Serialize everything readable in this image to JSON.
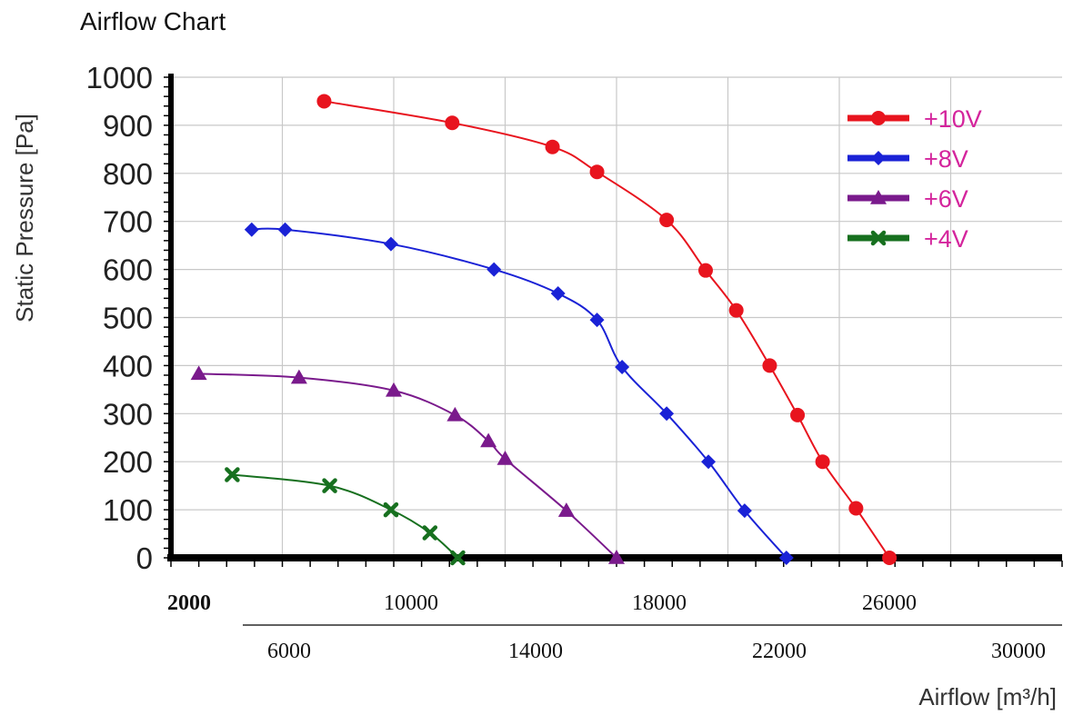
{
  "chart_data": {
    "type": "line",
    "title": "Airflow Chart",
    "xlabel": "Airflow [m³/h]",
    "ylabel": "Static Pressure [Pa]",
    "xlim": [
      0,
      32000
    ],
    "ylim": [
      0,
      1000
    ],
    "yticks": [
      "1000",
      "900",
      "800",
      "700",
      "600",
      "500",
      "400",
      "300",
      "200",
      "100",
      "0"
    ],
    "xticks_upper": [
      "2000",
      "10000",
      "18000",
      "26000"
    ],
    "xticks_lower": [
      "6000",
      "14000",
      "22000",
      "30000"
    ],
    "grid": true,
    "legend_position": "top-right",
    "series": [
      {
        "name": "+10V",
        "color": "#e8141e",
        "marker": "circle",
        "points": [
          [
            5500,
            950
          ],
          [
            10100,
            905
          ],
          [
            13700,
            855
          ],
          [
            15300,
            803
          ],
          [
            17800,
            703
          ],
          [
            19200,
            598
          ],
          [
            20300,
            515
          ],
          [
            21500,
            400
          ],
          [
            22500,
            297
          ],
          [
            23400,
            200
          ],
          [
            24600,
            103
          ],
          [
            25800,
            0
          ]
        ]
      },
      {
        "name": "+8V",
        "color": "#1a22d6",
        "marker": "diamond",
        "points": [
          [
            2900,
            683
          ],
          [
            4100,
            683
          ],
          [
            7900,
            653
          ],
          [
            11600,
            600
          ],
          [
            13900,
            550
          ],
          [
            15300,
            495
          ],
          [
            16200,
            397
          ],
          [
            17800,
            300
          ],
          [
            19300,
            200
          ],
          [
            20600,
            98
          ],
          [
            22100,
            0
          ]
        ]
      },
      {
        "name": "+6V",
        "color": "#7a1a8c",
        "marker": "triangle",
        "points": [
          [
            1000,
            383
          ],
          [
            4600,
            375
          ],
          [
            8000,
            348
          ],
          [
            10200,
            297
          ],
          [
            11400,
            243
          ],
          [
            12000,
            206
          ],
          [
            14200,
            98
          ],
          [
            16000,
            0
          ]
        ]
      },
      {
        "name": "+4V",
        "color": "#17701f",
        "marker": "x",
        "points": [
          [
            2200,
            173
          ],
          [
            5700,
            150
          ],
          [
            7900,
            100
          ],
          [
            9300,
            52
          ],
          [
            10300,
            0
          ]
        ]
      }
    ]
  }
}
